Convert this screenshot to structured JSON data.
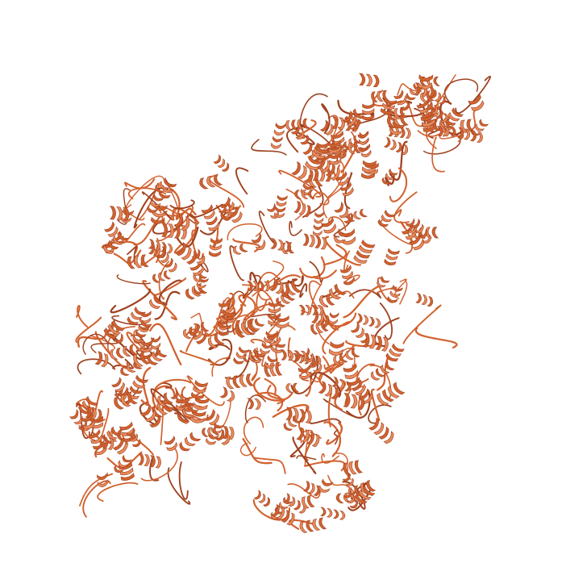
{
  "scene": {
    "background_color": "#ffffff",
    "ribbon_color": "#d2622f",
    "ribbon_shadow_color": "#9e4220",
    "ribbon_highlight_color": "#e88a5c",
    "representation": "cartoon-ribbon",
    "secondary_structure": [
      "alpha-helix",
      "coil-loop"
    ]
  }
}
